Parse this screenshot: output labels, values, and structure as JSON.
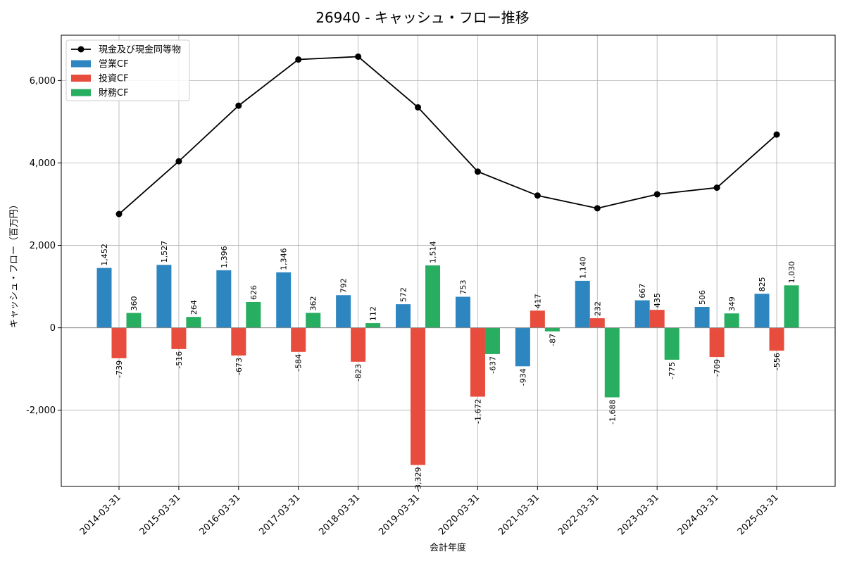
{
  "chart_data": {
    "type": "bar",
    "title": "26940 - キャッシュ・フロー推移",
    "xlabel": "会計年度",
    "ylabel": "キャッシュ・フロー（百万円）",
    "ylim": [
      -3850,
      7100
    ],
    "yticks": [
      -2000,
      0,
      2000,
      4000,
      6000
    ],
    "ytick_labels": [
      "-2,000",
      "0",
      "2,000",
      "4,000",
      "6,000"
    ],
    "grid": true,
    "legend_position": "top-left",
    "categories": [
      "2014-03-31",
      "2015-03-31",
      "2016-03-31",
      "2017-03-31",
      "2018-03-31",
      "2019-03-31",
      "2020-03-31",
      "2021-03-31",
      "2022-03-31",
      "2023-03-31",
      "2024-03-31",
      "2025-03-31"
    ],
    "series": [
      {
        "name": "営業CF",
        "type": "bar",
        "color": "#2e86c1",
        "values": [
          1452,
          1527,
          1396,
          1346,
          792,
          572,
          753,
          -934,
          1140,
          667,
          506,
          825
        ],
        "labels": [
          "1,452",
          "1,527",
          "1,396",
          "1,346",
          "792",
          "572",
          "753",
          "-934",
          "1,140",
          "667",
          "506",
          "825"
        ]
      },
      {
        "name": "投資CF",
        "type": "bar",
        "color": "#e74c3c",
        "values": [
          -739,
          -516,
          -673,
          -584,
          -823,
          -3329,
          -1672,
          417,
          232,
          435,
          -709,
          -556
        ],
        "labels": [
          "-739",
          "-516",
          "-673",
          "-584",
          "-823",
          "-3,329",
          "-1,672",
          "417",
          "232",
          "435",
          "-709",
          "-556"
        ]
      },
      {
        "name": "財務CF",
        "type": "bar",
        "color": "#27ae60",
        "values": [
          360,
          264,
          626,
          362,
          112,
          1514,
          -637,
          -87,
          -1688,
          -775,
          349,
          1030
        ],
        "labels": [
          "360",
          "264",
          "626",
          "362",
          "112",
          "1,514",
          "-637",
          "-87",
          "-1,688",
          "-775",
          "349",
          "1,030"
        ]
      },
      {
        "name": "現金及び現金同等物",
        "type": "line",
        "color": "#000000",
        "values": [
          2760,
          4040,
          5390,
          6510,
          6580,
          5350,
          3790,
          3210,
          2900,
          3240,
          3400,
          4690
        ]
      }
    ]
  }
}
